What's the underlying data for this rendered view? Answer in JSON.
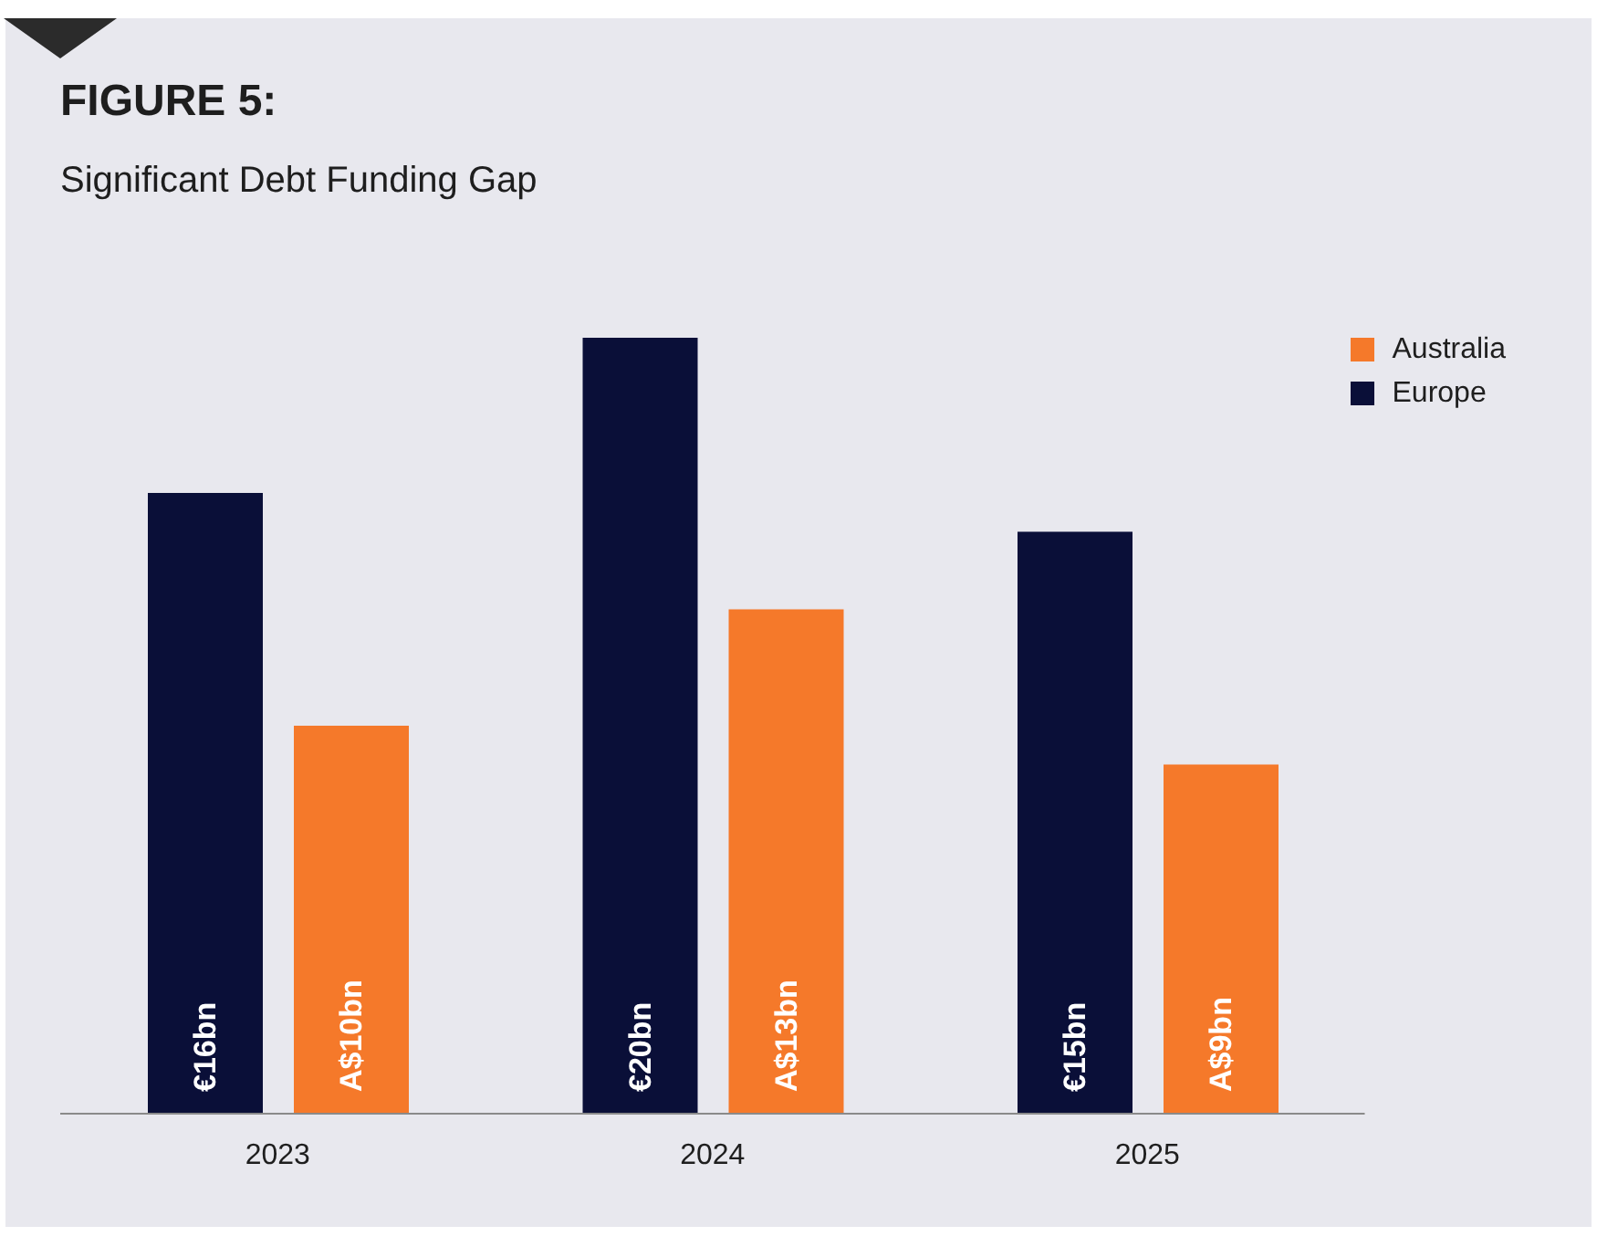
{
  "chart_data": {
    "type": "bar",
    "title": "FIGURE 5:",
    "subtitle": "Significant Debt Funding Gap",
    "categories": [
      "2023",
      "2024",
      "2025"
    ],
    "series": [
      {
        "name": "Europe",
        "color": "#0a0f38",
        "values": [
          16,
          20,
          15
        ],
        "value_labels": [
          "€16bn",
          "€20bn",
          "€15bn"
        ]
      },
      {
        "name": "Australia",
        "color": "#f5792a",
        "values": [
          10,
          13,
          9
        ],
        "value_labels": [
          "A$10bn",
          "A$13bn",
          "A$9bn"
        ]
      }
    ],
    "legend": "top right",
    "grid": false
  }
}
